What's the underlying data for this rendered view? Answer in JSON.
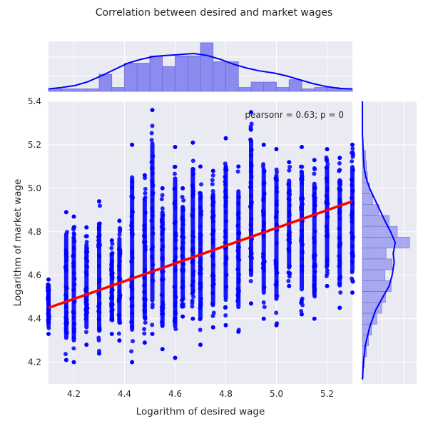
{
  "chart_data": {
    "type": "scatter",
    "title": "Correlation between desired and market wages",
    "xlabel": "Logarithm of desired wage",
    "ylabel": "Logarithm of market wage",
    "xlim": [
      4.1,
      5.3
    ],
    "ylim": [
      4.1,
      5.4
    ],
    "x_ticks": [
      "4.2",
      "4.4",
      "4.6",
      "4.8",
      "5.0",
      "5.2"
    ],
    "y_ticks": [
      "4.2",
      "4.4",
      "4.6",
      "4.8",
      "5.0",
      "5.2",
      "5.4"
    ],
    "annotation": "pearsonr = 0.63; p = 0",
    "background": "#eaeaf2",
    "grid": true,
    "colors": {
      "points": "#0000ff",
      "regression_line": "#ff0000",
      "histogram": "#8b8bf0",
      "kde": "#0000ff"
    },
    "regression_line": {
      "x": [
        4.1,
        5.3
      ],
      "y": [
        4.45,
        4.94
      ]
    },
    "scatter_columns": [
      {
        "x": 4.1,
        "y_min": 4.33,
        "y_max": 4.58
      },
      {
        "x": 4.17,
        "y_min": 4.21,
        "y_max": 4.89
      },
      {
        "x": 4.2,
        "y_min": 4.2,
        "y_max": 4.87
      },
      {
        "x": 4.25,
        "y_min": 4.28,
        "y_max": 4.82
      },
      {
        "x": 4.3,
        "y_min": 4.24,
        "y_max": 4.94
      },
      {
        "x": 4.35,
        "y_min": 4.33,
        "y_max": 4.76
      },
      {
        "x": 4.38,
        "y_min": 4.3,
        "y_max": 4.85
      },
      {
        "x": 4.43,
        "y_min": 4.2,
        "y_max": 5.2
      },
      {
        "x": 4.48,
        "y_min": 4.29,
        "y_max": 5.06
      },
      {
        "x": 4.51,
        "y_min": 4.33,
        "y_max": 5.36
      },
      {
        "x": 4.55,
        "y_min": 4.26,
        "y_max": 5.0
      },
      {
        "x": 4.6,
        "y_min": 4.22,
        "y_max": 5.19
      },
      {
        "x": 4.63,
        "y_min": 4.41,
        "y_max": 5.0
      },
      {
        "x": 4.67,
        "y_min": 4.4,
        "y_max": 5.21
      },
      {
        "x": 4.7,
        "y_min": 4.28,
        "y_max": 5.1
      },
      {
        "x": 4.75,
        "y_min": 4.36,
        "y_max": 5.08
      },
      {
        "x": 4.8,
        "y_min": 4.37,
        "y_max": 5.23
      },
      {
        "x": 4.85,
        "y_min": 4.34,
        "y_max": 5.1
      },
      {
        "x": 4.9,
        "y_min": 4.47,
        "y_max": 5.35
      },
      {
        "x": 4.95,
        "y_min": 4.4,
        "y_max": 5.2
      },
      {
        "x": 5.0,
        "y_min": 4.37,
        "y_max": 5.18
      },
      {
        "x": 5.05,
        "y_min": 4.55,
        "y_max": 5.12
      },
      {
        "x": 5.1,
        "y_min": 4.42,
        "y_max": 5.19
      },
      {
        "x": 5.15,
        "y_min": 4.4,
        "y_max": 5.13
      },
      {
        "x": 5.2,
        "y_min": 4.55,
        "y_max": 5.18
      },
      {
        "x": 5.25,
        "y_min": 4.45,
        "y_max": 5.14
      },
      {
        "x": 5.3,
        "y_min": 4.52,
        "y_max": 5.2
      }
    ],
    "top_histogram": {
      "bins": [
        4.1,
        4.15,
        4.2,
        4.25,
        4.3,
        4.35,
        4.4,
        4.45,
        4.5,
        4.55,
        4.6,
        4.65,
        4.7,
        4.75,
        4.8,
        4.85,
        4.9,
        4.95,
        5.0,
        5.05,
        5.1,
        5.15,
        5.2,
        5.25,
        5.3
      ],
      "heights": [
        0.05,
        0.05,
        0.05,
        0.05,
        0.35,
        0.08,
        0.58,
        0.58,
        0.73,
        0.51,
        0.73,
        0.73,
        1.0,
        0.61,
        0.61,
        0.08,
        0.19,
        0.19,
        0.08,
        0.24,
        0.05,
        0.08,
        0.08,
        0.05
      ],
      "kde": [
        0.05,
        0.08,
        0.12,
        0.2,
        0.32,
        0.45,
        0.58,
        0.66,
        0.72,
        0.74,
        0.76,
        0.78,
        0.74,
        0.66,
        0.56,
        0.48,
        0.42,
        0.38,
        0.32,
        0.24,
        0.16,
        0.1,
        0.06,
        0.05
      ]
    },
    "right_histogram": {
      "y": [
        4.15,
        4.2,
        4.25,
        4.3,
        4.35,
        4.4,
        4.45,
        4.5,
        4.55,
        4.6,
        4.65,
        4.7,
        4.75,
        4.8,
        4.85,
        4.9,
        4.95,
        5.0,
        5.05,
        5.1,
        5.15,
        5.2,
        5.25
      ],
      "widths": [
        0.02,
        0.04,
        0.08,
        0.12,
        0.18,
        0.28,
        0.38,
        0.45,
        0.56,
        0.44,
        0.58,
        0.46,
        0.92,
        0.68,
        0.52,
        0.32,
        0.2,
        0.14,
        0.1,
        0.08,
        0.06,
        0.02,
        0.01
      ],
      "kde_y": [
        4.12,
        4.2,
        4.28,
        4.36,
        4.44,
        4.5,
        4.55,
        4.6,
        4.63,
        4.66,
        4.7,
        4.75,
        4.8,
        4.85,
        4.9,
        4.95,
        5.0,
        5.05,
        5.1,
        5.15,
        5.2,
        5.25,
        5.3,
        5.4
      ],
      "kde_w": [
        0.0,
        0.02,
        0.06,
        0.14,
        0.26,
        0.4,
        0.52,
        0.58,
        0.6,
        0.62,
        0.6,
        0.64,
        0.55,
        0.44,
        0.34,
        0.24,
        0.14,
        0.07,
        0.03,
        0.02,
        0.01,
        0.0,
        0.0,
        0.0
      ]
    }
  }
}
